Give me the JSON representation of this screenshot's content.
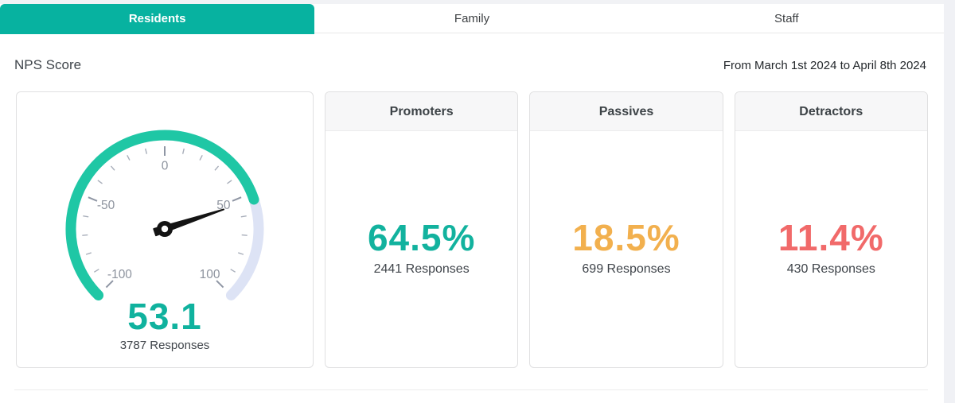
{
  "tabs": [
    {
      "label": "Residents",
      "active": true
    },
    {
      "label": "Family",
      "active": false
    },
    {
      "label": "Staff",
      "active": false
    }
  ],
  "header": {
    "title": "NPS Score",
    "date_range": "From March 1st 2024 to April 8th 2024"
  },
  "chart_data": {
    "type": "gauge",
    "title": "NPS Score",
    "min": -100,
    "max": 100,
    "value": 53.1,
    "start_angle": 225,
    "end_angle": -45,
    "minor_tick_step": 10,
    "major_tick_step": 50,
    "tick_labels": [
      "-100",
      "-50",
      "0",
      "50",
      "100"
    ],
    "value_label": "53.1",
    "responses_label": "3787 Responses",
    "colors": {
      "progress": "#1fc7a5",
      "track": "#dde3f5",
      "needle": "#141414",
      "tick_minor": "#a8aeba",
      "tick_major": "#8f96a4",
      "tick_label": "#8d939e",
      "value_text": "#10b29e"
    }
  },
  "gauge_card": {
    "value": "53.1",
    "responses": "3787 Responses"
  },
  "stat_cards": [
    {
      "title": "Promoters",
      "percent": "64.5%",
      "responses": "2441 Responses",
      "color": "#12b29e"
    },
    {
      "title": "Passives",
      "percent": "18.5%",
      "responses": "699 Responses",
      "color": "#f2b04e"
    },
    {
      "title": "Detractors",
      "percent": "11.4%",
      "responses": "430 Responses",
      "color": "#f16a6a"
    }
  ],
  "accent_color": "#07b2a0"
}
